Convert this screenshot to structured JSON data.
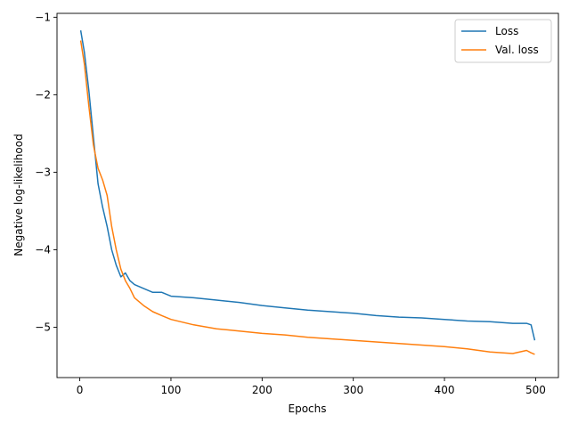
{
  "chart_data": {
    "type": "line",
    "title": "",
    "xlabel": "Epochs",
    "ylabel": "Negative log-likelihood",
    "xlim": [
      -25,
      525
    ],
    "ylim": [
      -5.65,
      -0.95
    ],
    "xticks": [
      0,
      100,
      200,
      300,
      400,
      500
    ],
    "yticks": [
      -1,
      -2,
      -3,
      -4,
      -5
    ],
    "xtick_labels": [
      "0",
      "100",
      "200",
      "300",
      "400",
      "500"
    ],
    "ytick_labels": [
      "−1",
      "−2",
      "−3",
      "−4",
      "−5"
    ],
    "grid": false,
    "legend_position": "top-right",
    "series": [
      {
        "name": "Loss",
        "color": "#1f77b4",
        "x": [
          1,
          5,
          10,
          15,
          20,
          25,
          30,
          35,
          40,
          45,
          50,
          55,
          60,
          70,
          80,
          90,
          100,
          125,
          150,
          175,
          200,
          225,
          250,
          275,
          300,
          325,
          350,
          375,
          400,
          425,
          450,
          475,
          490,
          495,
          499
        ],
        "y": [
          -1.17,
          -1.45,
          -1.95,
          -2.55,
          -3.15,
          -3.45,
          -3.7,
          -4.0,
          -4.2,
          -4.35,
          -4.3,
          -4.4,
          -4.45,
          -4.5,
          -4.55,
          -4.55,
          -4.6,
          -4.62,
          -4.65,
          -4.68,
          -4.72,
          -4.75,
          -4.78,
          -4.8,
          -4.82,
          -4.85,
          -4.87,
          -4.88,
          -4.9,
          -4.92,
          -4.93,
          -4.95,
          -4.95,
          -4.97,
          -5.17
        ]
      },
      {
        "name": "Val. loss",
        "color": "#ff7f0e",
        "x": [
          1,
          5,
          10,
          15,
          20,
          25,
          30,
          35,
          40,
          45,
          50,
          55,
          60,
          70,
          80,
          90,
          100,
          125,
          150,
          175,
          200,
          225,
          250,
          275,
          300,
          325,
          350,
          375,
          400,
          425,
          450,
          475,
          490,
          495,
          499
        ],
        "y": [
          -1.3,
          -1.6,
          -2.15,
          -2.65,
          -2.95,
          -3.1,
          -3.3,
          -3.7,
          -4.0,
          -4.25,
          -4.4,
          -4.5,
          -4.62,
          -4.72,
          -4.8,
          -4.85,
          -4.9,
          -4.97,
          -5.02,
          -5.05,
          -5.08,
          -5.1,
          -5.13,
          -5.15,
          -5.17,
          -5.19,
          -5.21,
          -5.23,
          -5.25,
          -5.28,
          -5.32,
          -5.34,
          -5.3,
          -5.33,
          -5.35
        ]
      }
    ]
  }
}
